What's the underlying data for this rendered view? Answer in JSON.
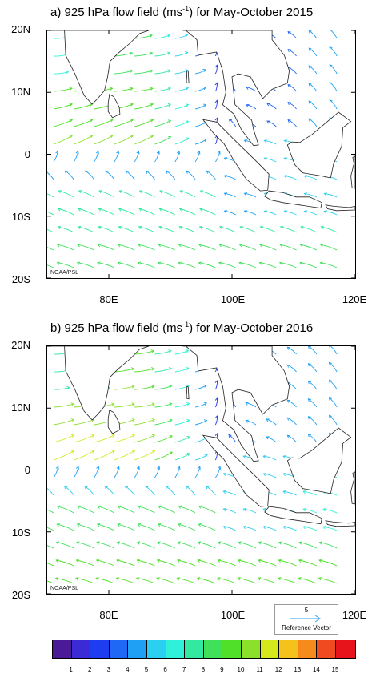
{
  "panels": [
    {
      "title_prefix": "a)   925 hPa flow field (ms",
      "title_sup": "-1",
      "title_suffix": ") for May-October 2015",
      "credit": "NOAA/PSL",
      "year": "2015"
    },
    {
      "title_prefix": "b)   925 hPa flow field (ms",
      "title_sup": "-1",
      "title_suffix": ") for May-October 2016",
      "credit": "NOAA/PSL",
      "year": "2016"
    }
  ],
  "axes": {
    "y_ticks": [
      "20N",
      "10N",
      "0",
      "10S",
      "20S"
    ],
    "x_ticks": [
      "80E",
      "100E",
      "120E"
    ],
    "lon_range": [
      70,
      120
    ],
    "lat_range": [
      -20,
      20
    ]
  },
  "reference_vector": {
    "magnitude": "5",
    "label": "Reference Vector",
    "arrow_color": "#5ab4f0"
  },
  "colorbar": {
    "labels": [
      "1",
      "2",
      "3",
      "4",
      "5",
      "6",
      "7",
      "8",
      "9",
      "10",
      "11",
      "12",
      "13",
      "14",
      "15"
    ],
    "colors": [
      "#4b1a96",
      "#3a2bd6",
      "#1f3df0",
      "#1e68f5",
      "#1fa0f5",
      "#2bd0f0",
      "#2ff0d8",
      "#33e8a0",
      "#3fe05a",
      "#50e02a",
      "#8ae02a",
      "#d4e81c",
      "#f4c21a",
      "#f68a1c",
      "#f04a20",
      "#e8141c"
    ]
  },
  "land_color": "#ffffff",
  "coast_color": "#222222"
}
